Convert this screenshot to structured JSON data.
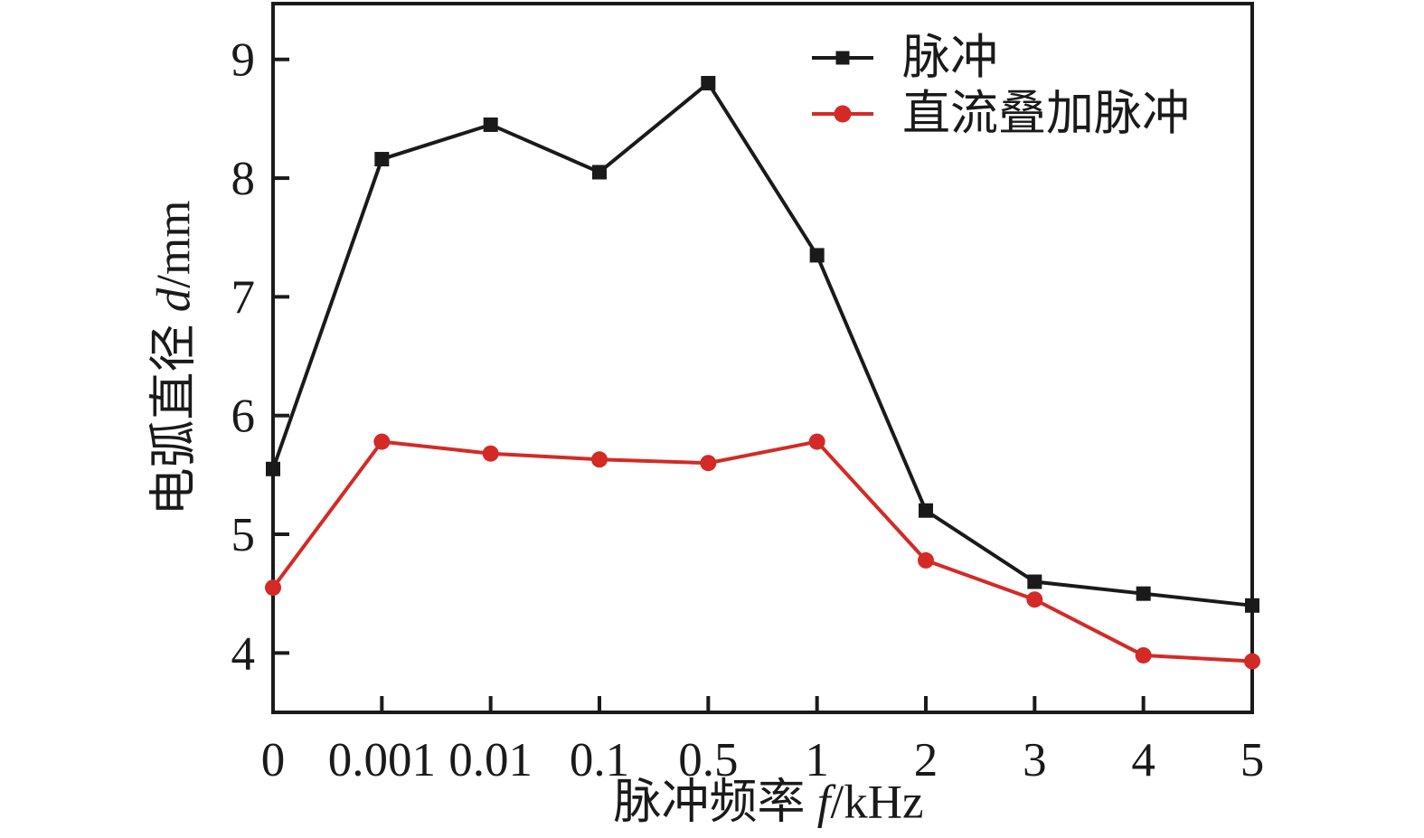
{
  "figure": {
    "background": "#ffffff",
    "axis_color": "#1a1a1a"
  },
  "chart_data": {
    "type": "line",
    "title": "",
    "xlabel": "脉冲频率 f/kHz",
    "ylabel": "电弧直径 d/mm",
    "xlabel_parts": {
      "prefix": "脉冲频率 ",
      "var": "f",
      "suffix": "/kHz"
    },
    "ylabel_parts": {
      "prefix": "电弧直径 ",
      "var": "d",
      "suffix": "/mm"
    },
    "categories": [
      "0",
      "0.001",
      "0.01",
      "0.1",
      "0.5",
      "1",
      "2",
      "3",
      "4",
      "5"
    ],
    "series": [
      {
        "name": "脉冲",
        "color": "#1a1a1a",
        "marker": "square",
        "values": [
          5.55,
          8.16,
          8.45,
          8.05,
          8.8,
          7.35,
          5.2,
          4.6,
          4.5,
          4.4
        ]
      },
      {
        "name": "直流叠加脉冲",
        "color": "#d42a26",
        "marker": "circle",
        "values": [
          4.55,
          5.78,
          5.68,
          5.63,
          5.6,
          5.78,
          4.78,
          4.45,
          3.98,
          3.93
        ]
      }
    ],
    "yticks": [
      4,
      5,
      6,
      7,
      8,
      9
    ],
    "ylim": [
      3.5,
      9.47
    ],
    "grid": false,
    "legend_position": "top-right",
    "legend": [
      "脉冲",
      "直流叠加脉冲"
    ]
  }
}
